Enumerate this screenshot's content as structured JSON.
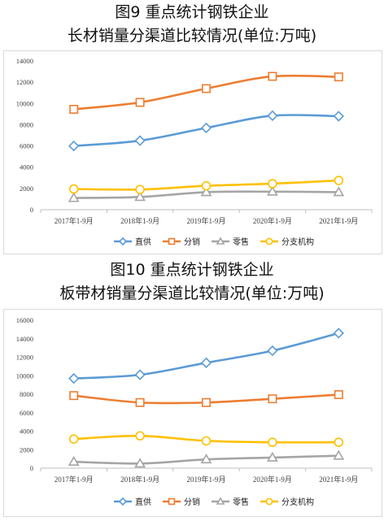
{
  "chart_data": [
    {
      "type": "line",
      "title": "图9  重点统计钢铁企业",
      "subtitle": "长材销量分渠道比较情况(单位:万吨)",
      "categories": [
        "2017年1-9月",
        "2018年1-9月",
        "2019年1-9月",
        "2020年1-9月",
        "2021年1-9月"
      ],
      "ylim": [
        0,
        14000
      ],
      "yticks": [
        0,
        2000,
        4000,
        6000,
        8000,
        10000,
        12000,
        14000
      ],
      "grid": false,
      "legend_position": "bottom",
      "series": [
        {
          "name": "直供",
          "color": "#5b9bd5",
          "marker": "diamond",
          "values": [
            6000,
            6500,
            7700,
            8850,
            8800
          ]
        },
        {
          "name": "分销",
          "color": "#ed7d31",
          "marker": "square",
          "values": [
            9450,
            10100,
            11400,
            12550,
            12500
          ]
        },
        {
          "name": "零售",
          "color": "#a5a5a5",
          "marker": "triangle",
          "values": [
            1100,
            1200,
            1650,
            1700,
            1650
          ]
        },
        {
          "name": "分支机构",
          "color": "#ffc000",
          "marker": "circle",
          "values": [
            1950,
            1900,
            2250,
            2450,
            2750
          ]
        }
      ]
    },
    {
      "type": "line",
      "title": "图10  重点统计钢铁企业",
      "subtitle": "板带材销量分渠道比较情况(单位:万吨)",
      "categories": [
        "2017年1-9月",
        "2018年1-9月",
        "2019年1-9月",
        "2020年1-9月",
        "2021年1-9月"
      ],
      "ylim": [
        0,
        16000
      ],
      "yticks": [
        0,
        2000,
        4000,
        6000,
        8000,
        10000,
        12000,
        14000,
        16000
      ],
      "grid": false,
      "legend_position": "bottom",
      "series": [
        {
          "name": "直供",
          "color": "#5b9bd5",
          "marker": "diamond",
          "values": [
            9700,
            10100,
            11400,
            12700,
            14600
          ]
        },
        {
          "name": "分销",
          "color": "#ed7d31",
          "marker": "square",
          "values": [
            7850,
            7100,
            7100,
            7500,
            7950
          ]
        },
        {
          "name": "零售",
          "color": "#a5a5a5",
          "marker": "triangle",
          "values": [
            700,
            500,
            950,
            1150,
            1350
          ]
        },
        {
          "name": "分支机构",
          "color": "#ffc000",
          "marker": "circle",
          "values": [
            3150,
            3500,
            2950,
            2800,
            2800
          ]
        }
      ]
    }
  ]
}
